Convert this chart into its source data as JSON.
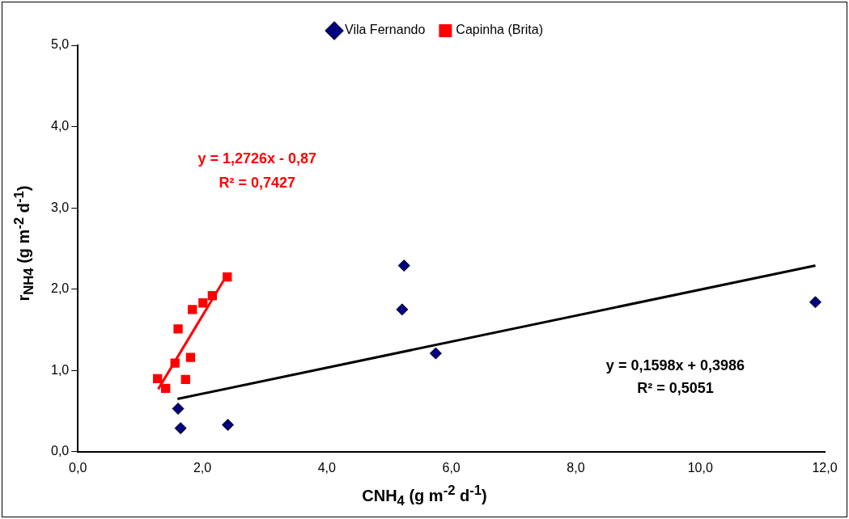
{
  "chart_data": {
    "type": "scatter",
    "xlabel": "CNH$_{4}$  (g m$^{-2}$ d$^{-1}$)",
    "ylabel": "r$_{NH4}$ (g m$^{-2}$ d$^{-1}$)",
    "legend": "top",
    "grid": false,
    "xlim": [
      0,
      12
    ],
    "xticks": [
      {
        "value": 0,
        "label": "0,0"
      },
      {
        "value": 2,
        "label": "2,0"
      },
      {
        "value": 4,
        "label": "4,0"
      },
      {
        "value": 6,
        "label": "6,0"
      },
      {
        "value": 8,
        "label": "8,0"
      },
      {
        "value": 10,
        "label": "10,0"
      },
      {
        "value": 12,
        "label": "12,0"
      }
    ],
    "ylim": [
      0,
      5
    ],
    "yticks": [
      {
        "value": 0,
        "label": "0,0"
      },
      {
        "value": 1,
        "label": "1,0"
      },
      {
        "value": 2,
        "label": "2,0"
      },
      {
        "value": 3,
        "label": "3,0"
      },
      {
        "value": 4,
        "label": "4,0"
      },
      {
        "value": 5,
        "label": "5,0"
      }
    ],
    "series": [
      {
        "name": "Vila Fernando",
        "color": "#000080",
        "marker": "diamond",
        "x": [
          1.61,
          1.65,
          2.41,
          5.24,
          5.21,
          5.75,
          11.85
        ],
        "values": [
          0.53,
          0.29,
          0.33,
          2.29,
          1.75,
          1.21,
          1.84
        ]
      },
      {
        "name": "Capinha (Brita)",
        "color": "#ff0000",
        "marker": "square",
        "x": [
          2.4,
          2.16,
          2.01,
          1.84,
          1.61,
          1.81,
          1.56,
          1.28,
          1.41,
          1.73
        ],
        "values": [
          2.15,
          1.92,
          1.83,
          1.75,
          1.51,
          1.16,
          1.09,
          0.9,
          0.78,
          0.89
        ]
      },
      {
        "type": "line",
        "color": "#000000",
        "marker": "none",
        "x": [
          1.6,
          11.85
        ],
        "values": [
          0.65,
          2.29
        ]
      },
      {
        "type": "line",
        "color": "#ff0000",
        "marker": "none",
        "x": [
          1.29,
          2.4
        ],
        "values": [
          0.77,
          2.18
        ]
      }
    ],
    "annotations": [
      "y = 1,2726x - 0,87",
      "R² = 0,7427",
      "y = 0,1598x + 0,3986",
      "R² = 0,5051"
    ]
  }
}
